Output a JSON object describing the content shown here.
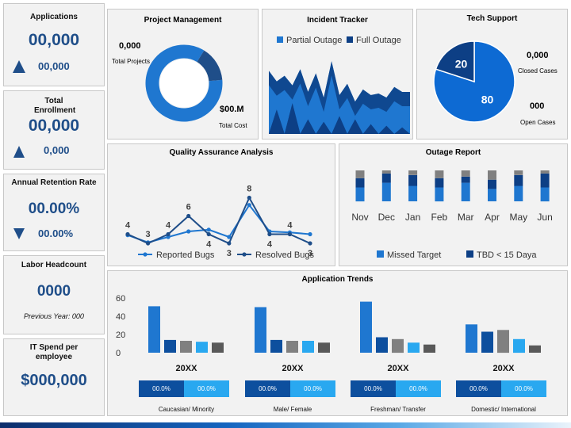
{
  "kpis": {
    "applications": {
      "title": "Applications",
      "value": "00,000",
      "sub": "00,000"
    },
    "enrollment": {
      "title": "Total Enrollment",
      "value": "00,000",
      "sub": "0,000"
    },
    "retention": {
      "title": "Annual Retention Rate",
      "value": "00.00%",
      "sub": "00.00%"
    },
    "headcount": {
      "title": "Labor Headcount",
      "value": "0000",
      "sub": "Previous Year: 000"
    },
    "it_spend": {
      "title": "IT Spend per employee",
      "value": "$000,000"
    }
  },
  "project": {
    "title": "Project Management",
    "total_projects_value": "0,000",
    "total_projects_label": "Total Projects",
    "total_cost_value": "$00.M",
    "total_cost_label": "Total Cost"
  },
  "incident": {
    "title": "Incident Tracker"
  },
  "tech": {
    "title": "Tech Support",
    "closed_value": "0,000",
    "closed_label": "Closed  Cases",
    "open_value": "000",
    "open_label": "Open Cases"
  },
  "qa": {
    "title": "Quality Assurance Analysis"
  },
  "outage": {
    "title": "Outage Report"
  },
  "trends": {
    "title": "Application Trends"
  },
  "colors": {
    "dark": "#0d4f9e",
    "mid": "#1f77d0",
    "light": "#29a8f0",
    "gray": "#808080",
    "darkgray": "#595959",
    "navy": "#1f4e89"
  },
  "chart_data": [
    {
      "type": "pie",
      "title": "Project Management",
      "style": "donut",
      "slices": [
        {
          "value": 85
        },
        {
          "value": 15
        }
      ]
    },
    {
      "type": "area",
      "title": "Incident Tracker",
      "series": [
        {
          "name": "Partial Outage",
          "values": [
            78,
            65,
            72,
            60,
            80,
            52,
            75,
            45,
            90,
            48,
            62,
            40,
            55,
            48,
            50,
            45,
            58,
            52,
            52
          ]
        },
        {
          "name": "Full Outage",
          "values": [
            0,
            30,
            0,
            38,
            0,
            18,
            0,
            15,
            0,
            22,
            0,
            18,
            0,
            12,
            0,
            10,
            0,
            8,
            0
          ]
        }
      ]
    },
    {
      "type": "pie",
      "title": "Tech Support",
      "slices": [
        {
          "label": "80",
          "value": 80
        },
        {
          "label": "20",
          "value": 20
        }
      ]
    },
    {
      "type": "line",
      "title": "Quality Assurance Analysis",
      "series": [
        {
          "name": "Reported Bugs",
          "values": [
            3.9,
            3.1,
            3.7,
            4.3,
            4.5,
            3.7,
            7.2,
            4.3,
            4.2,
            4.0
          ]
        },
        {
          "name": "Resolved Bugs",
          "values": [
            4,
            3,
            4,
            6,
            4,
            3,
            8,
            4,
            4,
            3
          ]
        }
      ],
      "data_labels": [
        {
          "index": 0,
          "text": "4"
        },
        {
          "index": 1,
          "text": "3"
        },
        {
          "index": 2,
          "text": "4"
        },
        {
          "index": 3,
          "text": "6"
        },
        {
          "index": 4,
          "text": "4"
        },
        {
          "index": 5,
          "text": "3"
        },
        {
          "index": 6,
          "text": "8"
        },
        {
          "index": 7,
          "text": "4"
        },
        {
          "index": 8,
          "text": "4"
        },
        {
          "index": 9,
          "text": "3"
        }
      ]
    },
    {
      "type": "bar",
      "title": "Outage Report",
      "stacked": true,
      "categories": [
        "Nov",
        "Dec",
        "Jan",
        "Feb",
        "Mar",
        "Apr",
        "May",
        "Jun"
      ],
      "series": [
        {
          "name": "Missed Target",
          "values": [
            45,
            60,
            50,
            45,
            60,
            40,
            50,
            45
          ]
        },
        {
          "name": "TBD < 15 Daya",
          "values": [
            30,
            30,
            35,
            30,
            20,
            30,
            35,
            45
          ]
        },
        {
          "name": "",
          "values": [
            25,
            10,
            15,
            25,
            20,
            30,
            15,
            10
          ]
        }
      ]
    },
    {
      "type": "bar",
      "title": "Application Trends",
      "ylim": [
        0,
        60
      ],
      "yticks": [
        0,
        20,
        40,
        60
      ],
      "groups": [
        {
          "category": "20XX",
          "caption": "Caucasian/ Minority",
          "values": [
            51,
            14,
            13,
            12,
            11
          ],
          "pills": [
            "00.0%",
            "00.0%"
          ]
        },
        {
          "category": "20XX",
          "caption": "Male/ Female",
          "values": [
            50,
            14,
            13,
            13,
            11
          ],
          "pills": [
            "00.0%",
            "00.0%"
          ]
        },
        {
          "category": "20XX",
          "caption": "Freshman/ Transfer",
          "values": [
            56,
            17,
            15,
            11,
            9
          ],
          "pills": [
            "00.0%",
            "00.0%"
          ]
        },
        {
          "category": "20XX",
          "caption": "Domestic/ International",
          "values": [
            31,
            23,
            25,
            15,
            8
          ],
          "pills": [
            "00.0%",
            "00.0%"
          ]
        }
      ]
    }
  ]
}
